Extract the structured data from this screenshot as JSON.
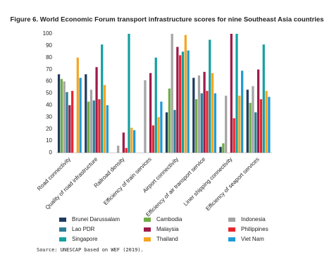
{
  "chart_data": {
    "type": "bar",
    "title": "Figure 6. World Economic Forum transport infrastructure scores for nine Southeast Asia countries",
    "source": "Source: UNESCAP based on WEF (2019).",
    "categories": [
      "Road connectivity",
      "Quality of road infrastructure",
      "Railroad density",
      "Efficiency of train services",
      "Airport connectivity",
      "Efficiency of air transport service",
      "Liner shipping connectivity",
      "Efficiency of seaport services"
    ],
    "series": [
      {
        "name": "Brunei Darussalam",
        "color": "#1f3a5f",
        "values": [
          66,
          66,
          null,
          null,
          34,
          63,
          5,
          53
        ]
      },
      {
        "name": "Cambodia",
        "color": "#70ad47",
        "values": [
          62,
          43,
          null,
          null,
          54,
          45,
          8,
          42
        ]
      },
      {
        "name": "Indonesia",
        "color": "#a5a5a5",
        "values": [
          60,
          53,
          6,
          61,
          100,
          65,
          48,
          56
        ]
      },
      {
        "name": "Lao PDR",
        "color": "#2e7d96",
        "values": [
          51,
          44,
          null,
          null,
          36,
          50,
          null,
          34
        ]
      },
      {
        "name": "Malaysia",
        "color": "#9e1b4a",
        "values": [
          40,
          72,
          17,
          67,
          89,
          68,
          100,
          70
        ]
      },
      {
        "name": "Philippines",
        "color": "#e8262b",
        "values": [
          52,
          45,
          4,
          23,
          82,
          52,
          29,
          45
        ]
      },
      {
        "name": "Singapore",
        "color": "#17a0a0",
        "values": [
          null,
          91,
          100,
          80,
          85,
          95,
          100,
          91
        ]
      },
      {
        "name": "Thailand",
        "color": "#f5a623",
        "values": [
          80,
          57,
          21,
          30,
          99,
          67,
          48,
          52
        ]
      },
      {
        "name": "Viet Nam",
        "color": "#1f9bd7",
        "values": [
          63,
          40,
          19,
          43,
          86,
          50,
          69,
          47
        ]
      }
    ],
    "ylim": [
      0,
      100
    ],
    "yticks": [
      0,
      10,
      20,
      30,
      40,
      50,
      60,
      70,
      80,
      90,
      100
    ],
    "grid": false
  }
}
